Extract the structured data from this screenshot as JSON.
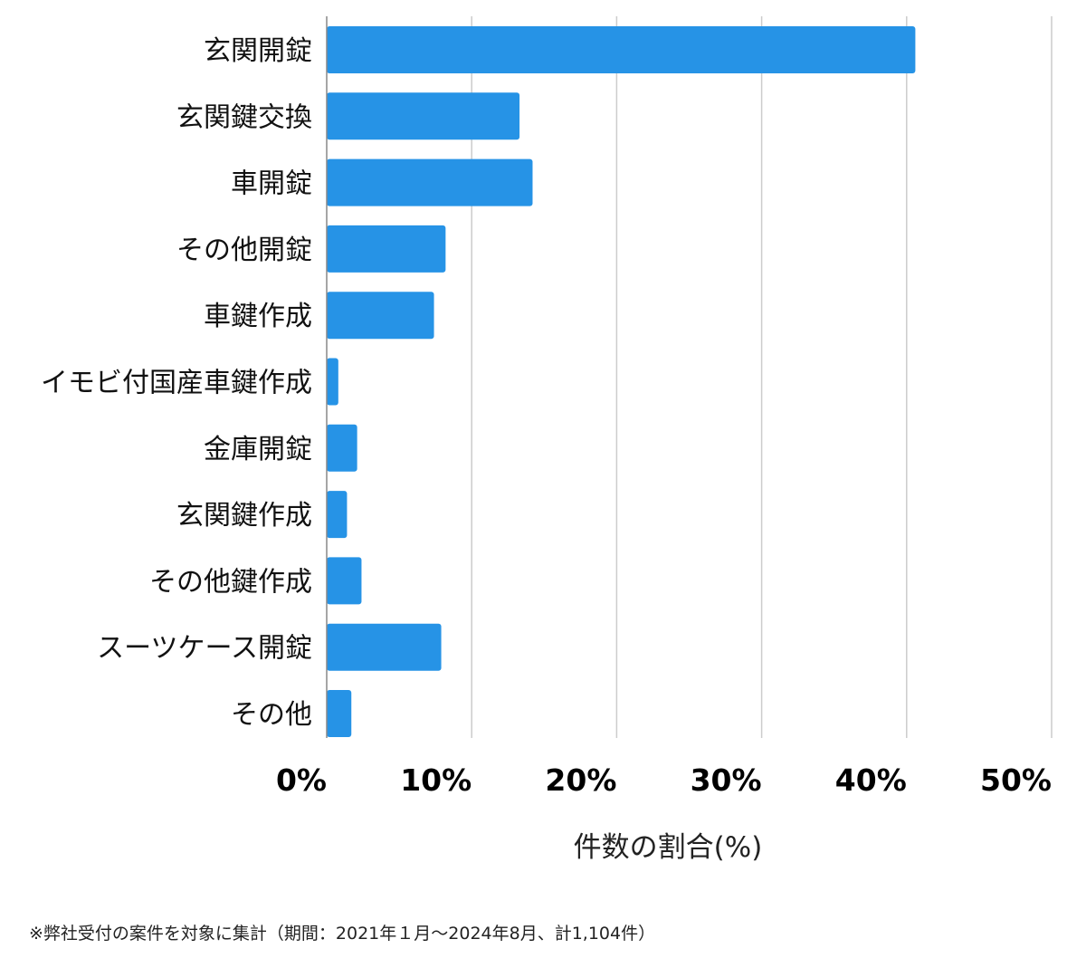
{
  "chart_data": {
    "type": "bar",
    "orientation": "horizontal",
    "categories": [
      "玄関開錠",
      "玄関鍵交換",
      "車開錠",
      "その他開錠",
      "車鍵作成",
      "イモビ付国産車鍵作成",
      "金庫開錠",
      "玄関鍵作成",
      "その他鍵作成",
      "スーツケース開錠",
      "その他"
    ],
    "values": [
      40.6,
      13.3,
      14.2,
      8.2,
      7.4,
      0.8,
      2.1,
      1.4,
      2.4,
      7.9,
      1.7
    ],
    "xlabel": "件数の割合(%)",
    "xlim": [
      0,
      50
    ],
    "xticks": [
      0,
      10,
      20,
      30,
      40,
      50
    ],
    "tick_format": "{v}%",
    "grid": true,
    "bar_color": "#2693e6",
    "grid_color": "#cccccc"
  },
  "footnote": "※弊社受付の案件を対象に集計（期間：2021年１月〜2024年8月、計1,104件）"
}
